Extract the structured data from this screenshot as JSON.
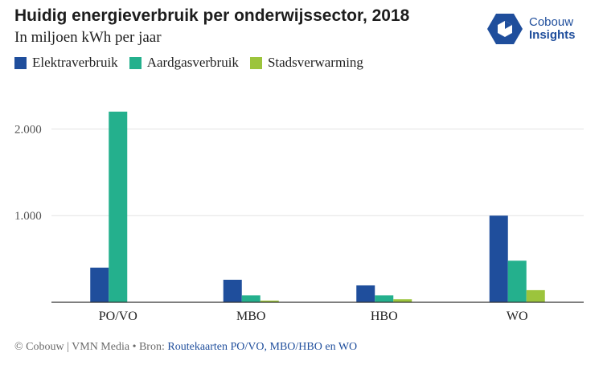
{
  "chart_data": {
    "type": "bar",
    "title": "Huidig energieverbruik per onderwijssector, 2018",
    "subtitle": "In miljoen kWh per jaar",
    "categories": [
      "PO/VO",
      "MBO",
      "HBO",
      "WO"
    ],
    "series": [
      {
        "name": "Elektraverbruik",
        "color": "#1f4e9c",
        "values": [
          400,
          260,
          195,
          1000
        ]
      },
      {
        "name": "Aardgasverbruik",
        "color": "#24b08d",
        "values": [
          2200,
          80,
          80,
          480
        ]
      },
      {
        "name": "Stadsverwarming",
        "color": "#9cc43c",
        "values": [
          0,
          20,
          35,
          140
        ]
      }
    ],
    "yticks": [
      1000,
      2000
    ],
    "ytick_labels": [
      "1.000",
      "2.000"
    ],
    "ylim": [
      0,
      2200
    ],
    "xlabel": "",
    "ylabel": "",
    "grid": true
  },
  "branding": {
    "logo_line1": "Cobouw",
    "logo_line2": "Insights",
    "logo_color": "#1f4e9c"
  },
  "footer": {
    "credit": "© Cobouw | VMN Media • Bron: ",
    "source": "Routekaarten PO/VO, MBO/HBO en WO"
  }
}
